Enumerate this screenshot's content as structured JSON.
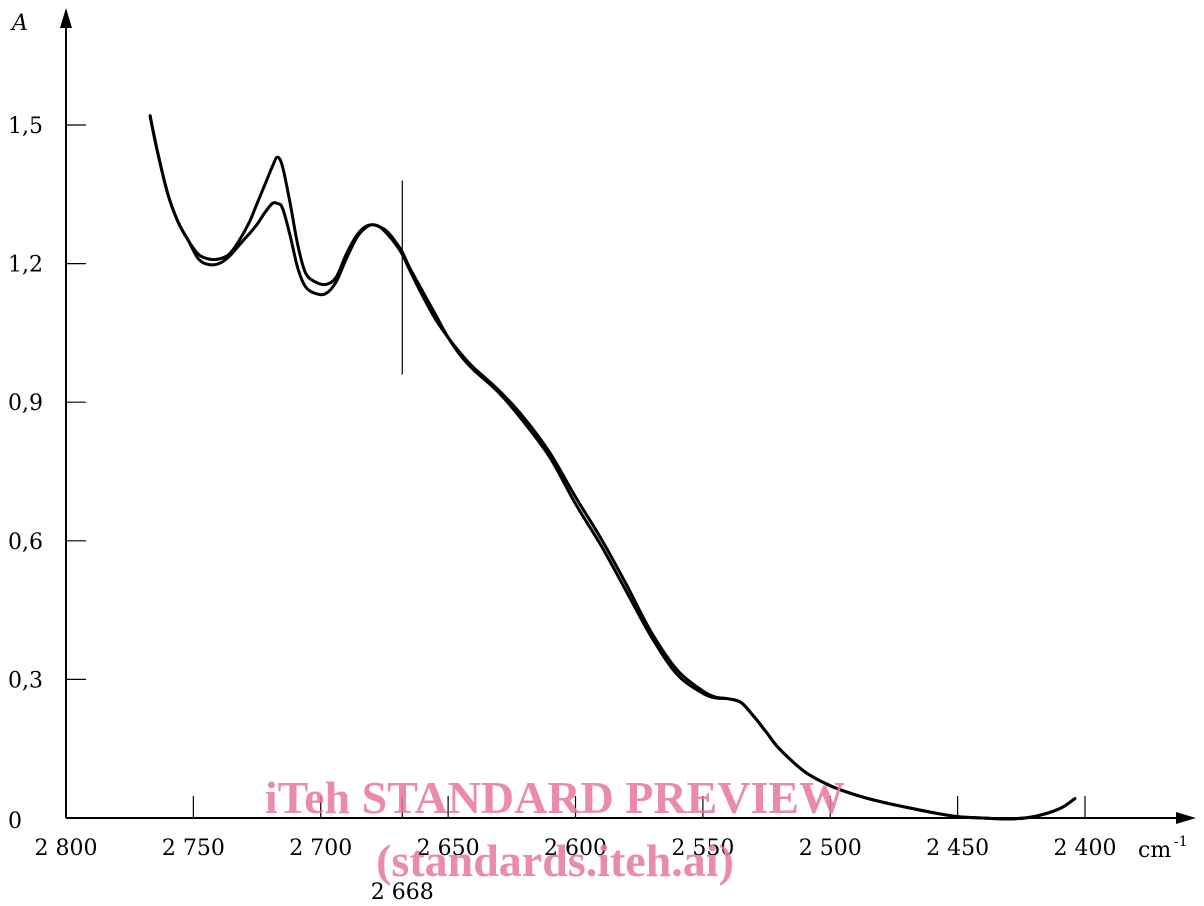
{
  "chart_data": {
    "type": "line",
    "ylabel": "A",
    "xunit": "cm",
    "xunit_sup": "-1",
    "xlim": [
      2800,
      2400
    ],
    "ylim": [
      0,
      1.5
    ],
    "x_ticks": [
      2800,
      2750,
      2700,
      2650,
      2600,
      2550,
      2500,
      2450,
      2400
    ],
    "x_tick_labels": [
      "2 800",
      "2 750",
      "2 700",
      "2 650",
      "2 600",
      "2 550",
      "2 500",
      "2 450",
      "2 400"
    ],
    "y_ticks": [
      0,
      0.3,
      0.6,
      0.9,
      1.2,
      1.5
    ],
    "y_tick_labels": [
      "0",
      "0,3",
      "0,6",
      "0,9",
      "1,2",
      "1,5"
    ],
    "marker": {
      "x": 2668,
      "label": "2 668",
      "y_range": [
        0.96,
        1.38
      ]
    },
    "grid": false,
    "series": [
      {
        "x": [
          2767,
          2764,
          2760,
          2756,
          2752,
          2748,
          2744,
          2740,
          2736,
          2732,
          2728,
          2725,
          2722,
          2719,
          2717,
          2715,
          2712,
          2709,
          2706,
          2702,
          2698,
          2694,
          2690,
          2686,
          2683,
          2680,
          2677,
          2674,
          2671,
          2668,
          2665,
          2660,
          2655,
          2650,
          2645,
          2640,
          2630,
          2620,
          2610,
          2600,
          2590,
          2580,
          2570,
          2560,
          2550,
          2545,
          2540,
          2535,
          2530,
          2525,
          2520,
          2510,
          2500,
          2490,
          2480,
          2470,
          2460,
          2450,
          2440,
          2430,
          2420,
          2410,
          2404
        ],
        "y": [
          1.52,
          1.44,
          1.35,
          1.29,
          1.25,
          1.22,
          1.21,
          1.21,
          1.22,
          1.25,
          1.29,
          1.33,
          1.37,
          1.41,
          1.43,
          1.41,
          1.33,
          1.24,
          1.18,
          1.16,
          1.155,
          1.17,
          1.22,
          1.26,
          1.278,
          1.284,
          1.28,
          1.265,
          1.245,
          1.22,
          1.185,
          1.13,
          1.08,
          1.04,
          1.005,
          0.975,
          0.925,
          0.865,
          0.79,
          0.695,
          0.605,
          0.505,
          0.4,
          0.32,
          0.275,
          0.262,
          0.258,
          0.25,
          0.22,
          0.185,
          0.15,
          0.1,
          0.07,
          0.05,
          0.035,
          0.023,
          0.012,
          0.003,
          0.0,
          -0.002,
          0.003,
          0.02,
          0.042
        ]
      },
      {
        "x": [
          2767,
          2764,
          2760,
          2756,
          2752,
          2748,
          2744,
          2740,
          2736,
          2732,
          2728,
          2725,
          2722,
          2719,
          2717,
          2715,
          2712,
          2709,
          2706,
          2702,
          2698,
          2694,
          2690,
          2686,
          2683,
          2680,
          2677,
          2674,
          2671,
          2668,
          2665,
          2660,
          2655,
          2650,
          2645,
          2640,
          2630,
          2620,
          2610,
          2600,
          2590,
          2580,
          2570,
          2560,
          2550,
          2545,
          2540,
          2535,
          2530,
          2525,
          2520,
          2510,
          2500,
          2490,
          2480,
          2470,
          2460,
          2450,
          2440,
          2430,
          2420,
          2410,
          2404
        ],
        "y": [
          1.52,
          1.44,
          1.35,
          1.29,
          1.25,
          1.21,
          1.198,
          1.2,
          1.215,
          1.24,
          1.265,
          1.285,
          1.31,
          1.33,
          1.33,
          1.32,
          1.26,
          1.19,
          1.15,
          1.135,
          1.135,
          1.16,
          1.21,
          1.255,
          1.275,
          1.284,
          1.28,
          1.27,
          1.25,
          1.225,
          1.19,
          1.14,
          1.09,
          1.04,
          1.0,
          0.97,
          0.92,
          0.855,
          0.78,
          0.68,
          0.59,
          0.49,
          0.39,
          0.31,
          0.27,
          0.26,
          0.258,
          0.25,
          0.22,
          0.185,
          0.15,
          0.1,
          0.07,
          0.05,
          0.035,
          0.023,
          0.012,
          0.003,
          0.0,
          -0.002,
          0.003,
          0.02,
          0.042
        ]
      }
    ]
  },
  "watermark": {
    "line1": "iTeh STANDARD PREVIEW",
    "line2": "(standards.iteh.ai)"
  },
  "colors": {
    "line": "#000000",
    "watermark": "#e8779c"
  }
}
